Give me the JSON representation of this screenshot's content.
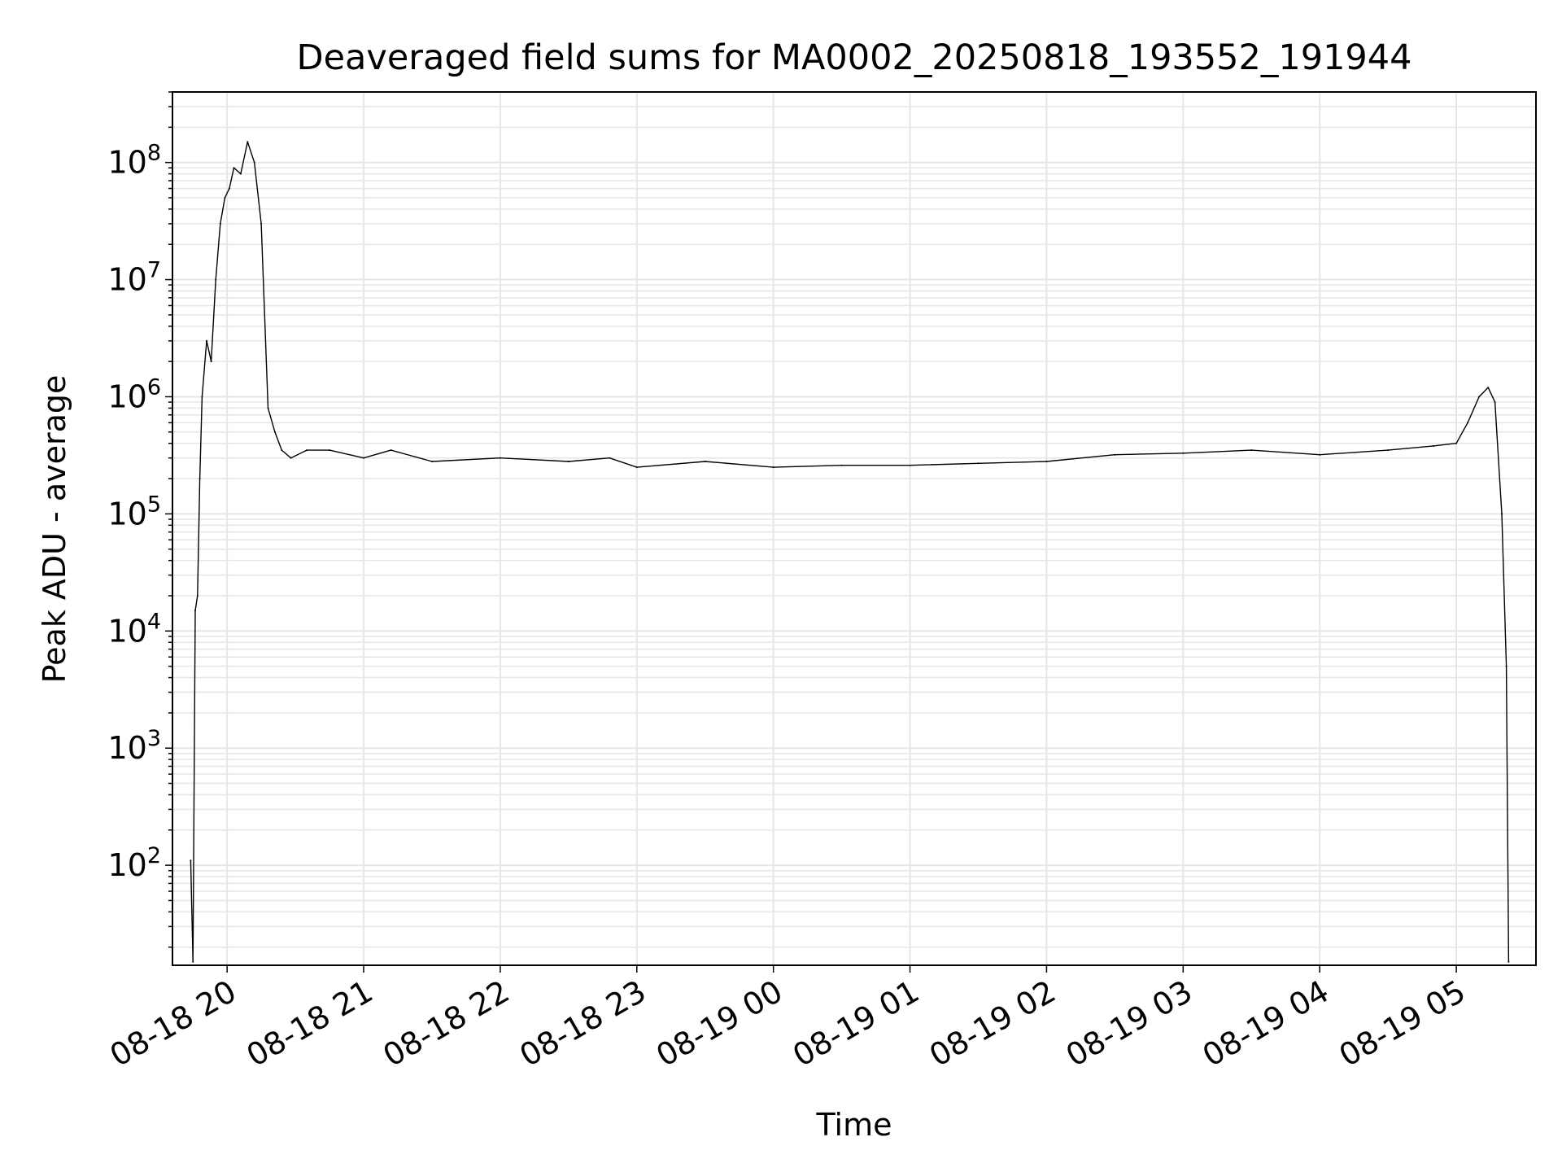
{
  "chart_data": {
    "type": "line",
    "title": "Deaveraged field sums for MA0002_20250818_193552_191944",
    "xlabel": "Time",
    "ylabel": "Peak ADU - average",
    "yscale": "log",
    "grid": true,
    "line_color": "#000000",
    "xlim": [
      "2025-08-18 19:36",
      "2025-08-19 05:35"
    ],
    "ylim": [
      14,
      400000000
    ],
    "x_tick_labels": [
      "08-18 20",
      "08-18 21",
      "08-18 22",
      "08-18 23",
      "08-19 00",
      "08-19 01",
      "08-19 02",
      "08-19 03",
      "08-19 04",
      "08-19 05"
    ],
    "x_tick_times": [
      "2025-08-18 20:00",
      "2025-08-18 21:00",
      "2025-08-18 22:00",
      "2025-08-18 23:00",
      "2025-08-19 00:00",
      "2025-08-19 01:00",
      "2025-08-19 02:00",
      "2025-08-19 03:00",
      "2025-08-19 04:00",
      "2025-08-19 05:00"
    ],
    "y_ticks": [
      {
        "value": 100,
        "base": "10",
        "exp": "2"
      },
      {
        "value": 1000,
        "base": "10",
        "exp": "3"
      },
      {
        "value": 10000,
        "base": "10",
        "exp": "4"
      },
      {
        "value": 100000,
        "base": "10",
        "exp": "5"
      },
      {
        "value": 1000000,
        "base": "10",
        "exp": "6"
      },
      {
        "value": 10000000,
        "base": "10",
        "exp": "7"
      },
      {
        "value": 100000000,
        "base": "10",
        "exp": "8"
      }
    ],
    "series": [
      {
        "x": [
          "2025-08-18 19:44",
          "2025-08-18 19:45",
          "2025-08-18 19:46",
          "2025-08-18 19:47",
          "2025-08-18 19:48",
          "2025-08-18 19:49",
          "2025-08-18 19:51",
          "2025-08-18 19:53",
          "2025-08-18 19:55",
          "2025-08-18 19:57",
          "2025-08-18 19:59",
          "2025-08-18 20:01",
          "2025-08-18 20:03",
          "2025-08-18 20:06",
          "2025-08-18 20:09",
          "2025-08-18 20:12",
          "2025-08-18 20:15",
          "2025-08-18 20:18",
          "2025-08-18 20:21",
          "2025-08-18 20:24",
          "2025-08-18 20:28",
          "2025-08-18 20:35",
          "2025-08-18 20:45",
          "2025-08-18 21:00",
          "2025-08-18 21:12",
          "2025-08-18 21:30",
          "2025-08-18 22:00",
          "2025-08-18 22:30",
          "2025-08-18 22:48",
          "2025-08-18 23:00",
          "2025-08-18 23:30",
          "2025-08-19 00:00",
          "2025-08-19 00:30",
          "2025-08-19 01:00",
          "2025-08-19 01:30",
          "2025-08-19 02:00",
          "2025-08-19 02:30",
          "2025-08-19 03:00",
          "2025-08-19 03:30",
          "2025-08-19 04:00",
          "2025-08-19 04:30",
          "2025-08-19 04:50",
          "2025-08-19 05:00",
          "2025-08-19 05:05",
          "2025-08-19 05:10",
          "2025-08-19 05:14",
          "2025-08-19 05:17",
          "2025-08-19 05:20",
          "2025-08-19 05:22",
          "2025-08-19 05:23"
        ],
        "y": [
          110,
          15,
          15000,
          20000,
          200000,
          1000000,
          3000000,
          2000000,
          10000000,
          30000000,
          50000000,
          60000000,
          90000000,
          80000000,
          150000000,
          100000000,
          30000000,
          800000,
          500000,
          350000,
          300000,
          350000,
          350000,
          300000,
          350000,
          280000,
          300000,
          280000,
          300000,
          250000,
          280000,
          250000,
          260000,
          260000,
          270000,
          280000,
          320000,
          330000,
          350000,
          320000,
          350000,
          380000,
          400000,
          600000,
          1000000,
          1200000,
          900000,
          100000,
          5000,
          15
        ]
      }
    ]
  }
}
